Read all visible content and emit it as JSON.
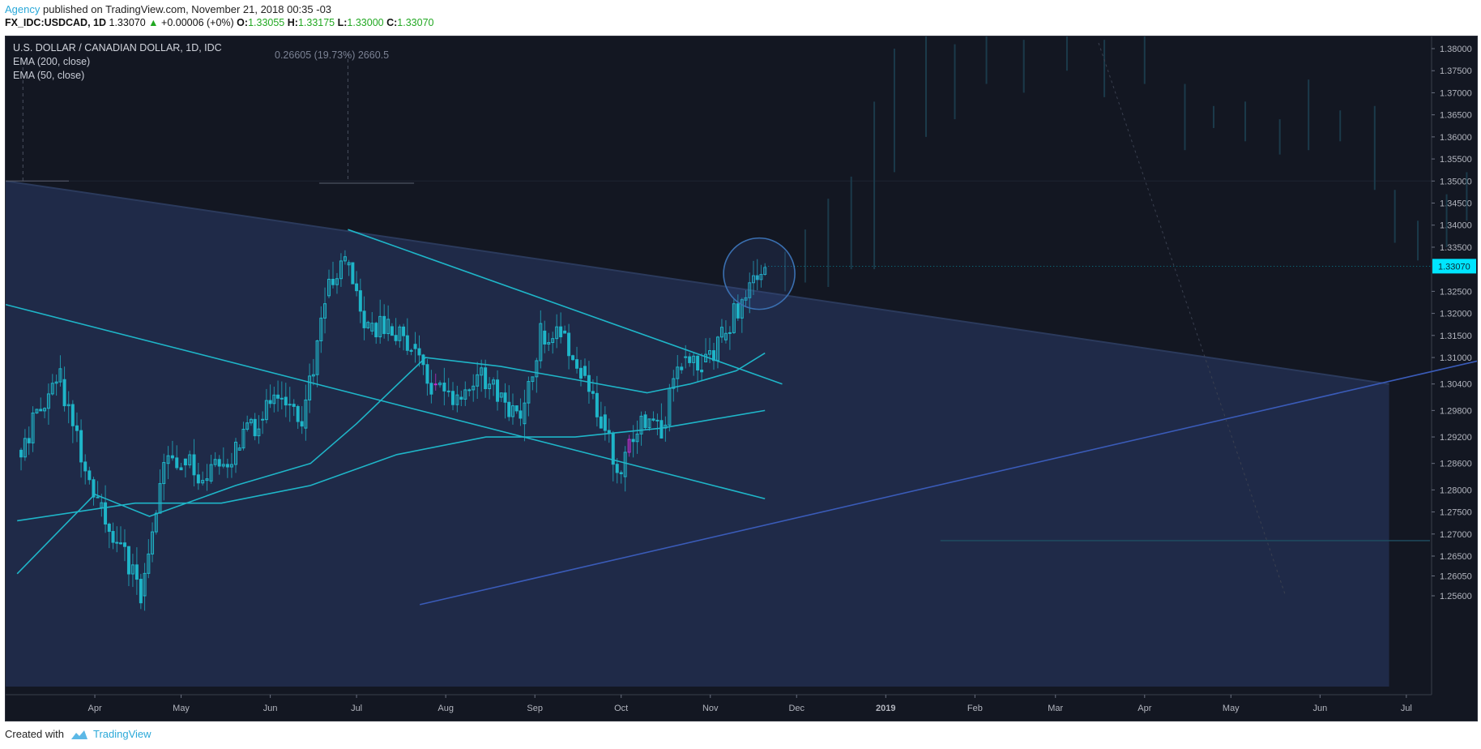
{
  "header": {
    "author": "Agency",
    "published_text": " published on TradingView.com, November 21, 2018 00:35 -03",
    "symbol": "FX_IDC:USDCAD, 1D",
    "last": "1.33070",
    "change": "+0.00006 (+0%)",
    "o_label": "O:",
    "o": "1.33055",
    "h_label": "H:",
    "h": "1.33175",
    "l_label": "L:",
    "l": "1.33000",
    "c_label": "C:",
    "c": "1.33070"
  },
  "legend": {
    "title": "U.S. DOLLAR / CANADIAN DOLLAR, 1D, IDC",
    "ema200": "EMA (200, close)",
    "ema50": "EMA (50, close)"
  },
  "measure_label": "0.26605 (19.73%) 2660.5",
  "footer": {
    "created_with": "Created with",
    "brand": "TradingView"
  },
  "colors": {
    "background": "#131722",
    "zone_fill": "#1f2a48",
    "trendline": "#1fb5c8",
    "support_line": "#3a5bb8",
    "candles": "#1fb5c8",
    "highlight_candles": "#c030d0",
    "price_tag": "#00e5ff"
  },
  "chart_data": {
    "type": "candlestick",
    "title": "U.S. DOLLAR / CANADIAN DOLLAR, 1D, IDC",
    "x_ticks": [
      "Apr",
      "May",
      "Jun",
      "Jul",
      "Aug",
      "Sep",
      "Oct",
      "Nov",
      "Dec",
      "2019",
      "Feb",
      "Mar",
      "Apr",
      "May",
      "Jun",
      "Jul"
    ],
    "y_ticks": [
      "1.38000",
      "1.37500",
      "1.37000",
      "1.36500",
      "1.36000",
      "1.35500",
      "1.35000",
      "1.34500",
      "1.34000",
      "1.33500",
      "1.33000",
      "1.32500",
      "1.32000",
      "1.31500",
      "1.31000",
      "1.30400",
      "1.29800",
      "1.29200",
      "1.28600",
      "1.28000",
      "1.27500",
      "1.27000",
      "1.26500",
      "1.26050",
      "1.25600"
    ],
    "last_price": "1.33070",
    "close_series": {
      "x": [
        "2018-03-05",
        "2018-03-20",
        "2018-04-02",
        "2018-04-10",
        "2018-04-17",
        "2018-04-25",
        "2018-05-01",
        "2018-05-10",
        "2018-05-20",
        "2018-05-28",
        "2018-06-05",
        "2018-06-12",
        "2018-06-20",
        "2018-06-27",
        "2018-07-05",
        "2018-07-12",
        "2018-07-20",
        "2018-07-27",
        "2018-08-05",
        "2018-08-12",
        "2018-08-19",
        "2018-08-27",
        "2018-09-03",
        "2018-09-10",
        "2018-09-17",
        "2018-09-24",
        "2018-10-01",
        "2018-10-08",
        "2018-10-15",
        "2018-10-22",
        "2018-10-29",
        "2018-11-05",
        "2018-11-12",
        "2018-11-20"
      ],
      "values": [
        1.289,
        1.305,
        1.276,
        1.268,
        1.256,
        1.286,
        1.287,
        1.282,
        1.289,
        1.296,
        1.301,
        1.294,
        1.324,
        1.331,
        1.316,
        1.317,
        1.313,
        1.304,
        1.301,
        1.306,
        1.301,
        1.295,
        1.316,
        1.316,
        1.308,
        1.297,
        1.283,
        1.297,
        1.294,
        1.31,
        1.309,
        1.314,
        1.323,
        1.331
      ]
    },
    "ema50": {
      "x": [
        "2018-03-05",
        "2018-04-01",
        "2018-04-20",
        "2018-05-20",
        "2018-06-15",
        "2018-07-01",
        "2018-07-25",
        "2018-08-20",
        "2018-09-15",
        "2018-10-10",
        "2018-10-25",
        "2018-11-10",
        "2018-11-20"
      ],
      "values": [
        1.261,
        1.279,
        1.274,
        1.281,
        1.286,
        1.295,
        1.31,
        1.308,
        1.305,
        1.302,
        1.304,
        1.307,
        1.311
      ]
    },
    "ema200": {
      "x": [
        "2018-03-05",
        "2018-04-15",
        "2018-05-15",
        "2018-06-15",
        "2018-07-15",
        "2018-08-15",
        "2018-09-15",
        "2018-10-15",
        "2018-11-20"
      ],
      "values": [
        1.273,
        1.277,
        1.277,
        1.281,
        1.288,
        1.292,
        1.292,
        1.294,
        1.298
      ]
    },
    "drawings": {
      "falling_channel_upper": {
        "start": [
          "2018-06-28",
          1.339
        ],
        "end": [
          "2018-11-26",
          1.304
        ]
      },
      "falling_channel_lower": {
        "start": [
          "2018-03-01",
          1.322
        ],
        "end": [
          "2018-11-20",
          1.278
        ]
      },
      "support_line": {
        "start": [
          "2018-07-23",
          1.254
        ],
        "end": [
          "2019-07-31",
          1.31
        ]
      },
      "zone_top": {
        "start": [
          "2018-03-01",
          1.35
        ],
        "end": [
          "2019-06-25",
          1.304
        ]
      },
      "horizontal_level": 1.2685,
      "circle_center": [
        "2018-11-18",
        1.329
      ]
    }
  }
}
